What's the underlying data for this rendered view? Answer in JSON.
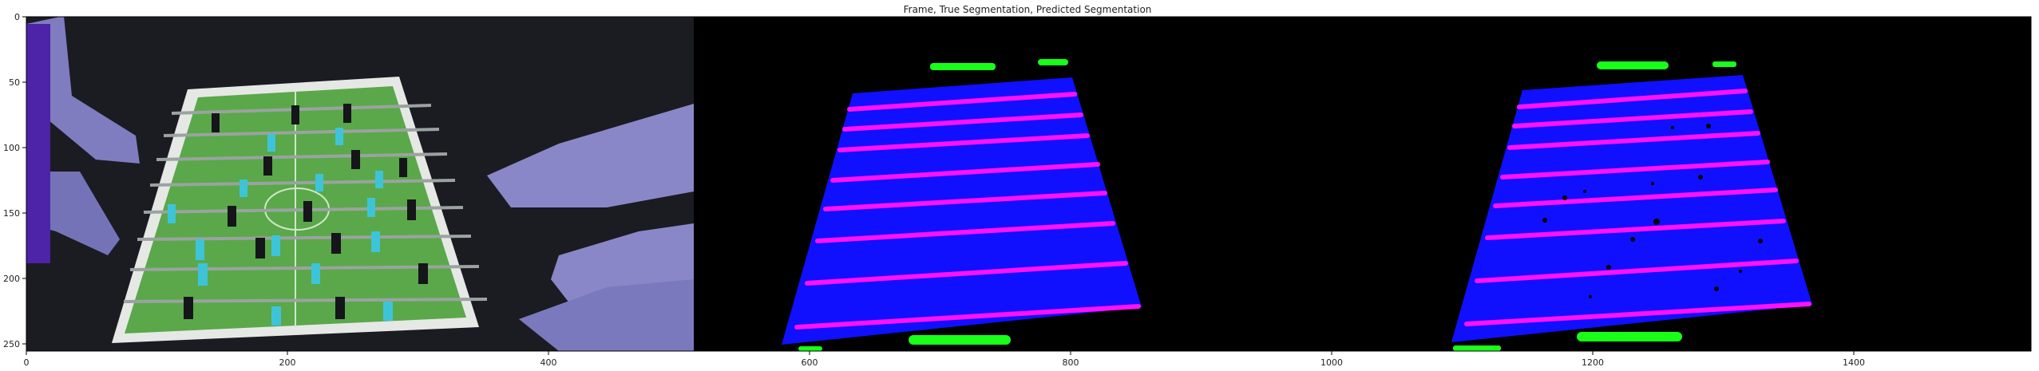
{
  "figure": {
    "title": "Frame, True Segmentation, Predicted Segmentation",
    "x_ticks": [
      "0",
      "200",
      "400",
      "600",
      "800",
      "1000",
      "1200",
      "1400"
    ],
    "y_ticks": [
      "0",
      "50",
      "100",
      "150",
      "200",
      "250"
    ],
    "panels": [
      {
        "name": "frame-panel",
        "content": "camera frame of foosball table"
      },
      {
        "name": "true-segmentation-panel",
        "content": "ground-truth mask"
      },
      {
        "name": "predicted-segmentation-panel",
        "content": "predicted mask"
      }
    ],
    "colors": {
      "background": "#000000",
      "field_mask": "#1010ff",
      "rod_mask": "#ff10ff",
      "goal_mask": "#18ff18",
      "frame_field": "#5aa84a",
      "frame_dark": "#1b1b22",
      "frame_arm": "#8a87c8",
      "figure_cyan": "#3ec4d8",
      "figure_dark": "#15151a"
    }
  }
}
